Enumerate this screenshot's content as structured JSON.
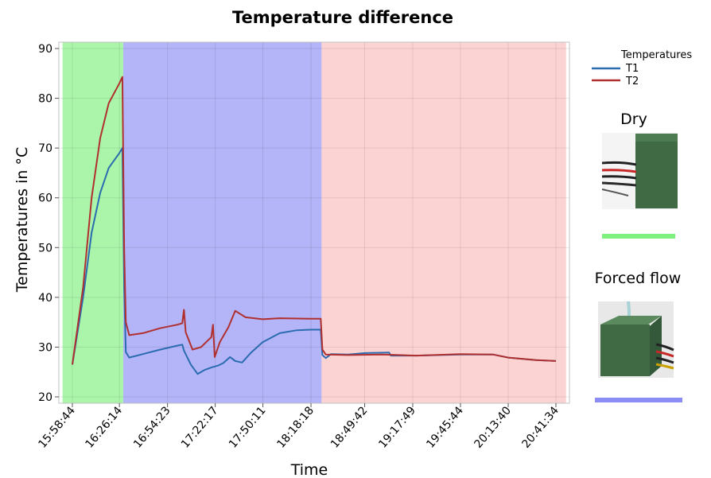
{
  "chart_data": {
    "type": "line",
    "title": "Temperature difference",
    "xlabel": "Time",
    "ylabel": "Temperatures in °C",
    "ylim": [
      20,
      90
    ],
    "yticks": [
      20,
      30,
      40,
      50,
      60,
      70,
      80,
      90
    ],
    "xtick_labels": [
      "15:58:44",
      "16:26:14",
      "16:54:23",
      "17:22:17",
      "17:50:11",
      "18:18:18",
      "18:49:42",
      "19:17:49",
      "19:45:44",
      "20:13:40",
      "20:41:34"
    ],
    "grid": true,
    "legend": {
      "title": "Temperatures",
      "placement": "right"
    },
    "series": [
      {
        "name": "T1",
        "color": "#2b6cb0",
        "points": [
          [
            "15:58:44",
            26.5
          ],
          [
            "16:05:00",
            40
          ],
          [
            "16:10:00",
            53
          ],
          [
            "16:15:00",
            61
          ],
          [
            "16:20:00",
            66
          ],
          [
            "16:26:14",
            69
          ],
          [
            "16:28:00",
            70
          ],
          [
            "16:29:00",
            42
          ],
          [
            "16:30:00",
            29
          ],
          [
            "16:32:00",
            27.9
          ],
          [
            "16:40:00",
            28.6
          ],
          [
            "16:50:00",
            29.5
          ],
          [
            "17:00:00",
            30.3
          ],
          [
            "17:03:00",
            30.5
          ],
          [
            "17:04:00",
            29.3
          ],
          [
            "17:08:00",
            26.5
          ],
          [
            "17:12:00",
            24.6
          ],
          [
            "17:16:00",
            25.4
          ],
          [
            "17:20:00",
            25.9
          ],
          [
            "17:24:00",
            26.3
          ],
          [
            "17:27:00",
            26.8
          ],
          [
            "17:31:00",
            28
          ],
          [
            "17:34:00",
            27.2
          ],
          [
            "17:38:00",
            26.9
          ],
          [
            "17:43:00",
            28.8
          ],
          [
            "17:50:00",
            31
          ],
          [
            "18:00:00",
            32.8
          ],
          [
            "18:10:00",
            33.4
          ],
          [
            "18:18:18",
            33.5
          ],
          [
            "18:24:00",
            33.5
          ],
          [
            "18:25:00",
            28.4
          ],
          [
            "18:27:00",
            27.8
          ],
          [
            "18:30:00",
            28.6
          ],
          [
            "18:40:00",
            28.5
          ],
          [
            "18:50:00",
            28.8
          ],
          [
            "19:04:00",
            28.9
          ],
          [
            "19:05:00",
            28.3
          ],
          [
            "19:20:00",
            28.3
          ],
          [
            "19:45:44",
            28.5
          ],
          [
            "20:05:00",
            28.5
          ],
          [
            "20:13:40",
            27.9
          ],
          [
            "20:30:00",
            27.4
          ],
          [
            "20:41:34",
            27.2
          ]
        ]
      },
      {
        "name": "T2",
        "color": "#b03030",
        "points": [
          [
            "15:58:44",
            26.5
          ],
          [
            "16:05:00",
            42
          ],
          [
            "16:10:00",
            60
          ],
          [
            "16:15:00",
            72
          ],
          [
            "16:20:00",
            79
          ],
          [
            "16:26:14",
            83
          ],
          [
            "16:28:00",
            84.3
          ],
          [
            "16:29:00",
            50
          ],
          [
            "16:30:00",
            35
          ],
          [
            "16:32:00",
            32.4
          ],
          [
            "16:40:00",
            32.8
          ],
          [
            "16:50:00",
            33.8
          ],
          [
            "17:00:00",
            34.5
          ],
          [
            "17:03:00",
            34.8
          ],
          [
            "17:04:00",
            37.5
          ],
          [
            "17:05:00",
            33
          ],
          [
            "17:09:00",
            29.5
          ],
          [
            "17:14:00",
            30
          ],
          [
            "17:20:00",
            32
          ],
          [
            "17:21:00",
            34.5
          ],
          [
            "17:22:00",
            28
          ],
          [
            "17:25:00",
            31
          ],
          [
            "17:30:00",
            34
          ],
          [
            "17:34:00",
            37.3
          ],
          [
            "17:40:00",
            36
          ],
          [
            "17:50:00",
            35.6
          ],
          [
            "18:00:00",
            35.8
          ],
          [
            "18:18:18",
            35.7
          ],
          [
            "18:24:00",
            35.7
          ],
          [
            "18:25:00",
            29.5
          ],
          [
            "18:27:00",
            28.5
          ],
          [
            "18:40:00",
            28.4
          ],
          [
            "19:00:00",
            28.5
          ],
          [
            "19:20:00",
            28.3
          ],
          [
            "19:45:44",
            28.6
          ],
          [
            "20:05:00",
            28.5
          ],
          [
            "20:13:40",
            27.9
          ],
          [
            "20:30:00",
            27.4
          ],
          [
            "20:41:34",
            27.2
          ]
        ]
      }
    ],
    "regions": [
      {
        "label": "Dry",
        "start": "15:53:00",
        "end": "16:28:30",
        "color": "#7ef07e"
      },
      {
        "label": "Forced flow",
        "start": "16:28:30",
        "end": "18:24:30",
        "color": "#8c8cf5"
      },
      {
        "label": "",
        "start": "18:24:30",
        "end": "20:47:30",
        "color": "#fbbcbc"
      }
    ]
  },
  "side_panel": {
    "dry_label": "Dry",
    "dry_color": "#7ef07e",
    "forced_label": "Forced flow",
    "forced_color": "#8c8cf5"
  }
}
